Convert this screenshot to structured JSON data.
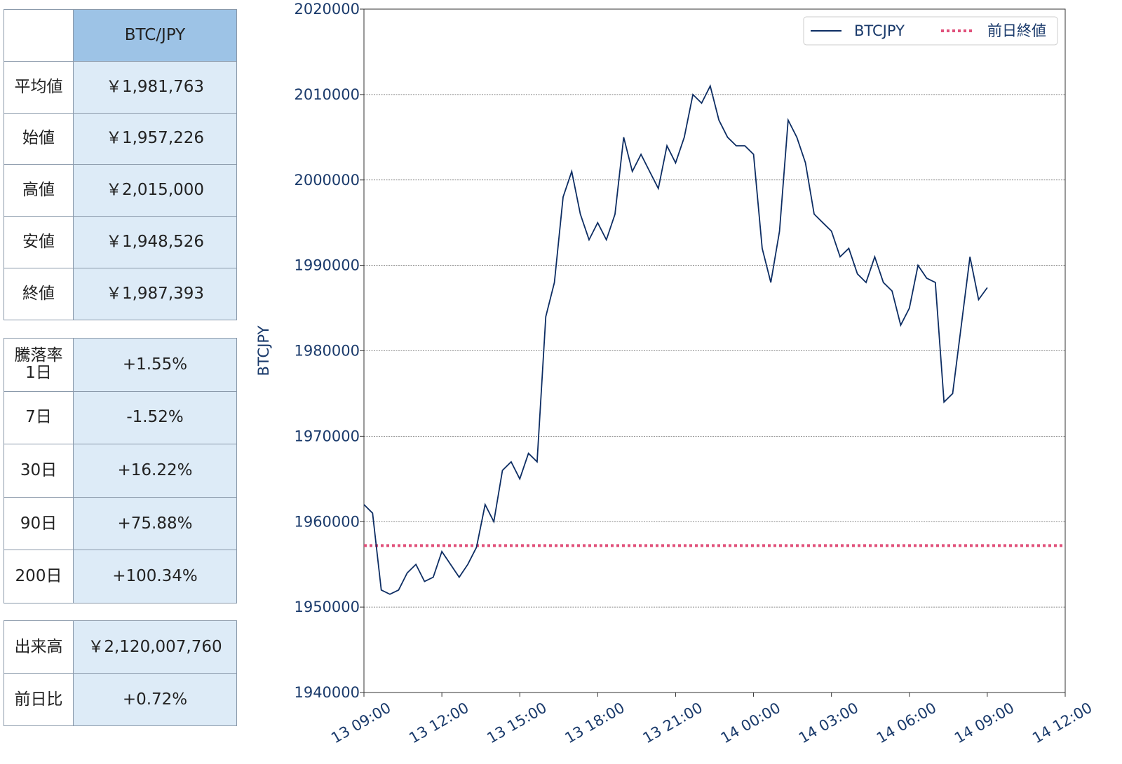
{
  "summary_table": {
    "header": "BTC/JPY",
    "rows": [
      [
        "平均値",
        "￥1,981,763"
      ],
      [
        "始値",
        "￥1,957,226"
      ],
      [
        "高値",
        "￥2,015,000"
      ],
      [
        "安値",
        "￥1,948,526"
      ],
      [
        "終値",
        "￥1,987,393"
      ]
    ]
  },
  "change_table": {
    "rows": [
      [
        "騰落率\n1日",
        "+1.55%"
      ],
      [
        "7日",
        "-1.52%"
      ],
      [
        "30日",
        "+16.22%"
      ],
      [
        "90日",
        "+75.88%"
      ],
      [
        "200日",
        "+100.34%"
      ]
    ]
  },
  "volume_table": {
    "rows": [
      [
        "出来高",
        "￥2,120,007,760"
      ],
      [
        "前日比",
        "+0.72%"
      ]
    ]
  },
  "chart_data": {
    "type": "line",
    "ylabel": "BTCJPY",
    "x": [
      "13 09:00",
      "13 09:20",
      "13 09:40",
      "13 10:00",
      "13 10:20",
      "13 10:40",
      "13 11:00",
      "13 11:20",
      "13 11:40",
      "13 12:00",
      "13 12:20",
      "13 12:40",
      "13 13:00",
      "13 13:20",
      "13 13:40",
      "13 14:00",
      "13 14:20",
      "13 14:40",
      "13 15:00",
      "13 15:20",
      "13 15:40",
      "13 16:00",
      "13 16:20",
      "13 16:40",
      "13 17:00",
      "13 17:20",
      "13 17:40",
      "13 18:00",
      "13 18:20",
      "13 18:40",
      "13 19:00",
      "13 19:20",
      "13 19:40",
      "13 20:00",
      "13 20:20",
      "13 20:40",
      "13 21:00",
      "13 21:20",
      "13 21:40",
      "13 22:00",
      "13 22:20",
      "13 22:40",
      "13 23:00",
      "13 23:20",
      "13 23:40",
      "14 00:00",
      "14 00:20",
      "14 00:40",
      "14 01:00",
      "14 01:20",
      "14 01:40",
      "14 02:00",
      "14 02:20",
      "14 02:40",
      "14 03:00",
      "14 03:20",
      "14 03:40",
      "14 04:00",
      "14 04:20",
      "14 04:40",
      "14 05:00",
      "14 05:20",
      "14 05:40",
      "14 06:00",
      "14 06:20",
      "14 06:40",
      "14 07:00",
      "14 07:20",
      "14 07:40",
      "14 08:00",
      "14 08:20",
      "14 08:40",
      "14 09:00"
    ],
    "series": [
      {
        "name": "BTCJPY",
        "color": "#0d2d63",
        "values": [
          1962000,
          1961000,
          1952000,
          1951500,
          1952000,
          1954000,
          1955000,
          1953000,
          1953500,
          1956500,
          1955000,
          1953500,
          1955000,
          1957000,
          1962000,
          1960000,
          1966000,
          1967000,
          1965000,
          1968000,
          1967000,
          1984000,
          1988000,
          1998000,
          2001000,
          1996000,
          1993000,
          1995000,
          1993000,
          1996000,
          2005000,
          2001000,
          2003000,
          2001000,
          1999000,
          2004000,
          2002000,
          2005000,
          2010000,
          2009000,
          2011000,
          2007000,
          2005000,
          2004000,
          2004000,
          2003000,
          1992000,
          1988000,
          1994000,
          2007000,
          2005000,
          2002000,
          1996000,
          1995000,
          1994000,
          1991000,
          1992000,
          1989000,
          1988000,
          1991000,
          1988000,
          1987000,
          1983000,
          1985000,
          1990000,
          1988500,
          1988000,
          1974000,
          1975000,
          1983000,
          1991000,
          1986000,
          1987393
        ]
      }
    ],
    "reference_line": {
      "name": "前日終値",
      "value": 1957200,
      "color": "#e0507a"
    },
    "xlim": [
      "13 09:00",
      "14 12:00"
    ],
    "xticks": [
      "13 09:00",
      "13 12:00",
      "13 15:00",
      "13 18:00",
      "13 21:00",
      "14 00:00",
      "14 03:00",
      "14 06:00",
      "14 09:00",
      "14 12:00"
    ],
    "ylim": [
      1940000,
      2020000
    ],
    "yticks": [
      1940000,
      1950000,
      1960000,
      1970000,
      1980000,
      1990000,
      2000000,
      2010000,
      2020000
    ],
    "grid": true,
    "legend": "upper right"
  }
}
